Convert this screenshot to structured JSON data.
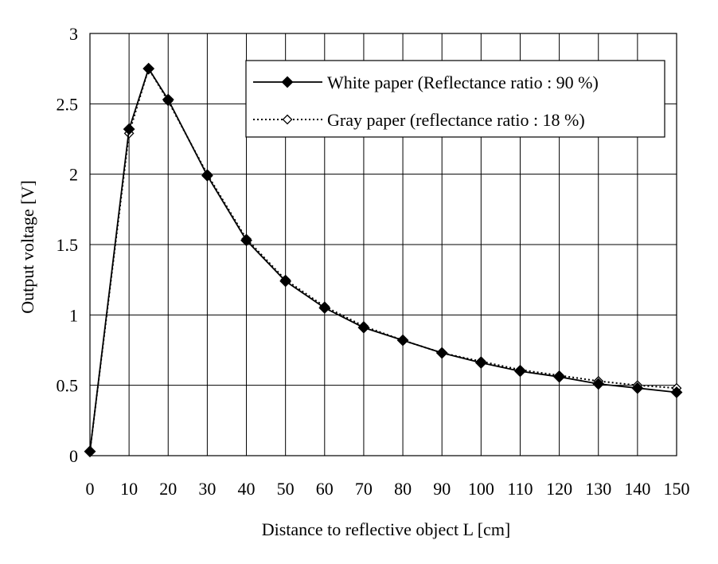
{
  "chart_data": {
    "type": "line",
    "xlabel": "Distance to reflective object L [cm]",
    "ylabel": "Output voltage [V]",
    "xlim": [
      0,
      150
    ],
    "ylim": [
      0,
      3
    ],
    "x_ticks": [
      0,
      10,
      20,
      30,
      40,
      50,
      60,
      70,
      80,
      90,
      100,
      110,
      120,
      130,
      140,
      150
    ],
    "y_ticks": [
      0,
      0.5,
      1,
      1.5,
      2,
      2.5,
      3
    ],
    "x_tick_labels": [
      "0",
      "10",
      "20",
      "30",
      "40",
      "50",
      "60",
      "70",
      "80",
      "90",
      "100",
      "110",
      "120",
      "130",
      "140",
      "150"
    ],
    "y_tick_labels": [
      "0",
      "0.5",
      "1",
      "1.5",
      "2",
      "2.5",
      "3"
    ],
    "grid": true,
    "legend_position": "top-right",
    "series": [
      {
        "name": "White paper (Reflectance ratio : 90 %)",
        "marker": "filled-diamond",
        "line_style": "solid",
        "color": "#000000",
        "x": [
          0,
          10,
          15,
          20,
          30,
          40,
          50,
          60,
          70,
          80,
          90,
          100,
          110,
          120,
          130,
          140,
          150
        ],
        "values": [
          0.03,
          2.32,
          2.75,
          2.53,
          1.99,
          1.53,
          1.24,
          1.05,
          0.91,
          0.82,
          0.73,
          0.66,
          0.6,
          0.56,
          0.51,
          0.48,
          0.45
        ]
      },
      {
        "name": "Gray paper (reflectance ratio : 18 %)",
        "marker": "open-diamond",
        "line_style": "dotted",
        "color": "#000000",
        "x": [
          0,
          10,
          15,
          20,
          30,
          40,
          50,
          60,
          70,
          80,
          90,
          100,
          110,
          120,
          130,
          140,
          150
        ],
        "values": [
          0.03,
          2.29,
          2.75,
          2.52,
          2.0,
          1.54,
          1.25,
          1.06,
          0.92,
          0.82,
          0.73,
          0.67,
          0.61,
          0.57,
          0.53,
          0.5,
          0.48
        ]
      }
    ]
  }
}
